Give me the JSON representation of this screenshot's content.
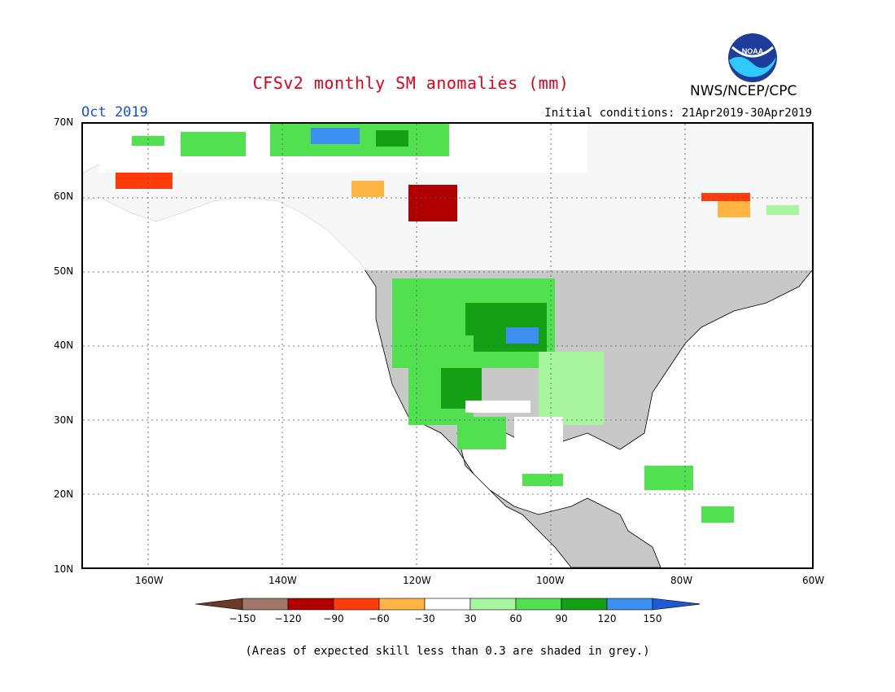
{
  "title": "CFSv2 monthly SM anomalies (mm)",
  "agency": "NWS/NCEP/CPC",
  "logo_text": "NOAA",
  "valid_month": "Oct 2019",
  "initial_conditions": "Initial conditions: 21Apr2019-30Apr2019",
  "lat_labels": [
    "70N",
    "60N",
    "50N",
    "40N",
    "30N",
    "20N",
    "10N"
  ],
  "lon_labels": [
    "160W",
    "140W",
    "120W",
    "100W",
    "80W",
    "60W"
  ],
  "colorbar": {
    "tick_labels": [
      "-150",
      "-120",
      "-90",
      "-60",
      "-30",
      "30",
      "60",
      "90",
      "120",
      "150"
    ],
    "colors": [
      "#6b3a28",
      "#a0786a",
      "#b00000",
      "#ff3c0a",
      "#ffb443",
      "#ffffff",
      "#a8f5a0",
      "#50e050",
      "#14a014",
      "#3c8ff0",
      "#1e5ad2"
    ]
  },
  "note": "(Areas of expected skill less than 0.3 are shaded in grey.)",
  "colors": {
    "ocean": "#ffffff",
    "low_skill": "#c8c8c8",
    "title": "#e3001b",
    "month": "#1a4fd8"
  }
}
